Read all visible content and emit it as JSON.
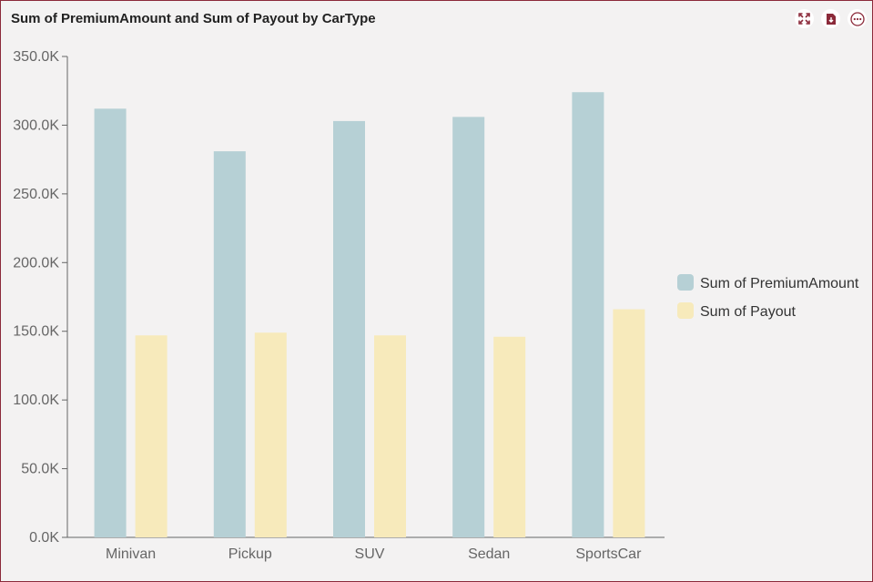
{
  "header": {
    "title": "Sum of PremiumAmount and Sum of Payout by CarType",
    "icons": [
      "expand-icon",
      "export-pdf-icon",
      "more-options-icon"
    ]
  },
  "colors": {
    "accent": "#8b2a3a",
    "premium": "#b6d0d5",
    "payout": "#f7eabb"
  },
  "chart_data": {
    "type": "bar",
    "title": "Sum of PremiumAmount and Sum of Payout by CarType",
    "categories": [
      "Minivan",
      "Pickup",
      "SUV",
      "Sedan",
      "SportsCar"
    ],
    "series": [
      {
        "name": "Sum of PremiumAmount",
        "values": [
          312000,
          281000,
          303000,
          306000,
          324000
        ]
      },
      {
        "name": "Sum of Payout",
        "values": [
          147000,
          149000,
          147000,
          146000,
          166000
        ]
      }
    ],
    "ylim": [
      0,
      350000
    ],
    "yticks": [
      0,
      50000,
      100000,
      150000,
      200000,
      250000,
      300000,
      350000
    ],
    "ytick_labels": [
      "0.0K",
      "50.0K",
      "100.0K",
      "150.0K",
      "200.0K",
      "250.0K",
      "300.0K",
      "350.0K"
    ],
    "xlabel": "",
    "ylabel": "",
    "grid": false,
    "legend": "right"
  }
}
